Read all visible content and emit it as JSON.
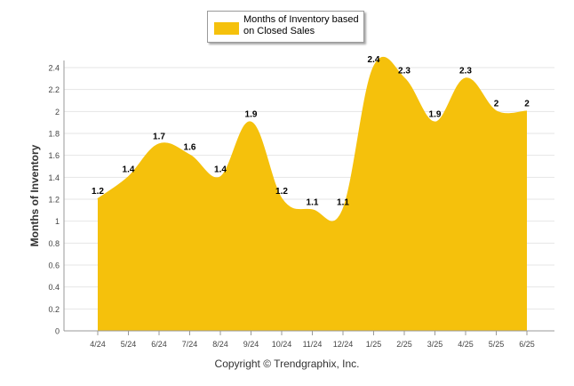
{
  "chart_data": {
    "type": "area",
    "categories": [
      "4/24",
      "5/24",
      "6/24",
      "7/24",
      "8/24",
      "9/24",
      "10/24",
      "11/24",
      "12/24",
      "1/25",
      "2/25",
      "3/25",
      "4/25",
      "5/25",
      "6/25"
    ],
    "series": [
      {
        "name": "Months of Inventory based on Closed Sales",
        "values": [
          1.2,
          1.4,
          1.7,
          1.6,
          1.4,
          1.9,
          1.2,
          1.1,
          1.1,
          2.4,
          2.3,
          1.9,
          2.3,
          2,
          2
        ]
      }
    ],
    "y_ticks": [
      "0",
      "0.2",
      "0.4",
      "0.6",
      "0.8",
      "1",
      "1.2",
      "1.4",
      "1.6",
      "1.8",
      "2",
      "2.2",
      "2.4"
    ],
    "ylabel": "Months of Inventory",
    "ylim": [
      0,
      2.4
    ],
    "grid": true,
    "legend": "top-center",
    "color": "#f5c10c"
  },
  "legend_label": "Months of Inventory based on Closed Sales",
  "footer": "Copyright © Trendgraphix, Inc."
}
